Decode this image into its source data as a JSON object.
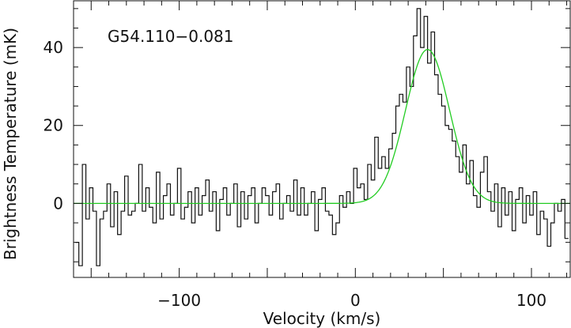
{
  "chart_data": {
    "type": "line",
    "title": "",
    "xlabel": "Velocity (km/s)",
    "ylabel": "Brightness Temperature (mK)",
    "annotation": "G54.110−0.081",
    "xlim": [
      -160,
      122
    ],
    "ylim": [
      -19,
      52
    ],
    "x_ticks": [
      {
        "value": -100,
        "label": "−100"
      },
      {
        "value": 0,
        "label": "0"
      },
      {
        "value": 100,
        "label": "100"
      }
    ],
    "y_ticks": [
      {
        "value": 0,
        "label": "0"
      },
      {
        "value": 20,
        "label": "20"
      },
      {
        "value": 40,
        "label": "40"
      }
    ],
    "grid": false,
    "legend": "none",
    "colors": {
      "spectrum": "#111111",
      "fit": "#22cc22",
      "axes": "#111111"
    },
    "series": [
      {
        "style": "step",
        "x": [
          -158,
          -156,
          -154,
          -152,
          -150,
          -148,
          -146,
          -144,
          -142,
          -140,
          -138,
          -136,
          -134,
          -132,
          -130,
          -128,
          -126,
          -124,
          -122,
          -120,
          -118,
          -116,
          -114,
          -112,
          -110,
          -108,
          -106,
          -104,
          -102,
          -100,
          -98,
          -96,
          -94,
          -92,
          -90,
          -88,
          -86,
          -84,
          -82,
          -80,
          -78,
          -76,
          -74,
          -72,
          -70,
          -68,
          -66,
          -64,
          -62,
          -60,
          -58,
          -56,
          -54,
          -52,
          -50,
          -48,
          -46,
          -44,
          -42,
          -40,
          -38,
          -36,
          -34,
          -32,
          -30,
          -28,
          -26,
          -24,
          -22,
          -20,
          -18,
          -16,
          -14,
          -12,
          -10,
          -8,
          -6,
          -4,
          -2,
          0,
          2,
          4,
          6,
          8,
          10,
          12,
          14,
          16,
          18,
          20,
          22,
          24,
          26,
          28,
          30,
          32,
          34,
          36,
          38,
          40,
          42,
          44,
          46,
          48,
          50,
          52,
          54,
          56,
          58,
          60,
          62,
          64,
          66,
          68,
          70,
          72,
          74,
          76,
          78,
          80,
          82,
          84,
          86,
          88,
          90,
          92,
          94,
          96,
          98,
          100,
          102,
          104,
          106,
          108,
          110,
          112,
          114,
          116,
          118,
          120
        ],
        "y": [
          -10,
          -16,
          10,
          -4,
          4,
          -2,
          -16,
          -4,
          -2,
          5,
          -6,
          3,
          -8,
          -2,
          7,
          -3,
          -2,
          0,
          10,
          -2,
          4,
          -1,
          -5,
          8,
          -4,
          2,
          5,
          -3,
          0,
          9,
          -4,
          -1,
          3,
          -5,
          4,
          -3,
          2,
          6,
          -2,
          3,
          -7,
          1,
          4,
          -3,
          0,
          5,
          -6,
          3,
          -4,
          2,
          4,
          -5,
          0,
          4,
          2,
          -3,
          3,
          5,
          -4,
          0,
          2,
          -2,
          6,
          -3,
          4,
          -3,
          0,
          3,
          -7,
          1,
          4,
          -2,
          -3,
          -8,
          -5,
          2,
          -1,
          3,
          0,
          9,
          4,
          5,
          1,
          10,
          6,
          17,
          9,
          12,
          9,
          14,
          18,
          25,
          28,
          26,
          35,
          30,
          43,
          50,
          40,
          48,
          36,
          44,
          33,
          28,
          25,
          20,
          19,
          16,
          12,
          8,
          15,
          5,
          11,
          2,
          -1,
          8,
          12,
          3,
          -2,
          5,
          -6,
          4,
          -3,
          3,
          -7,
          1,
          4,
          -5,
          2,
          -3,
          3,
          -8,
          -2,
          -4,
          -11,
          -5,
          0,
          -2,
          1,
          -9
        ]
      },
      {
        "style": "gaussian-fit",
        "amplitude": 39.5,
        "center": 41,
        "sigma": 12.5
      }
    ]
  }
}
